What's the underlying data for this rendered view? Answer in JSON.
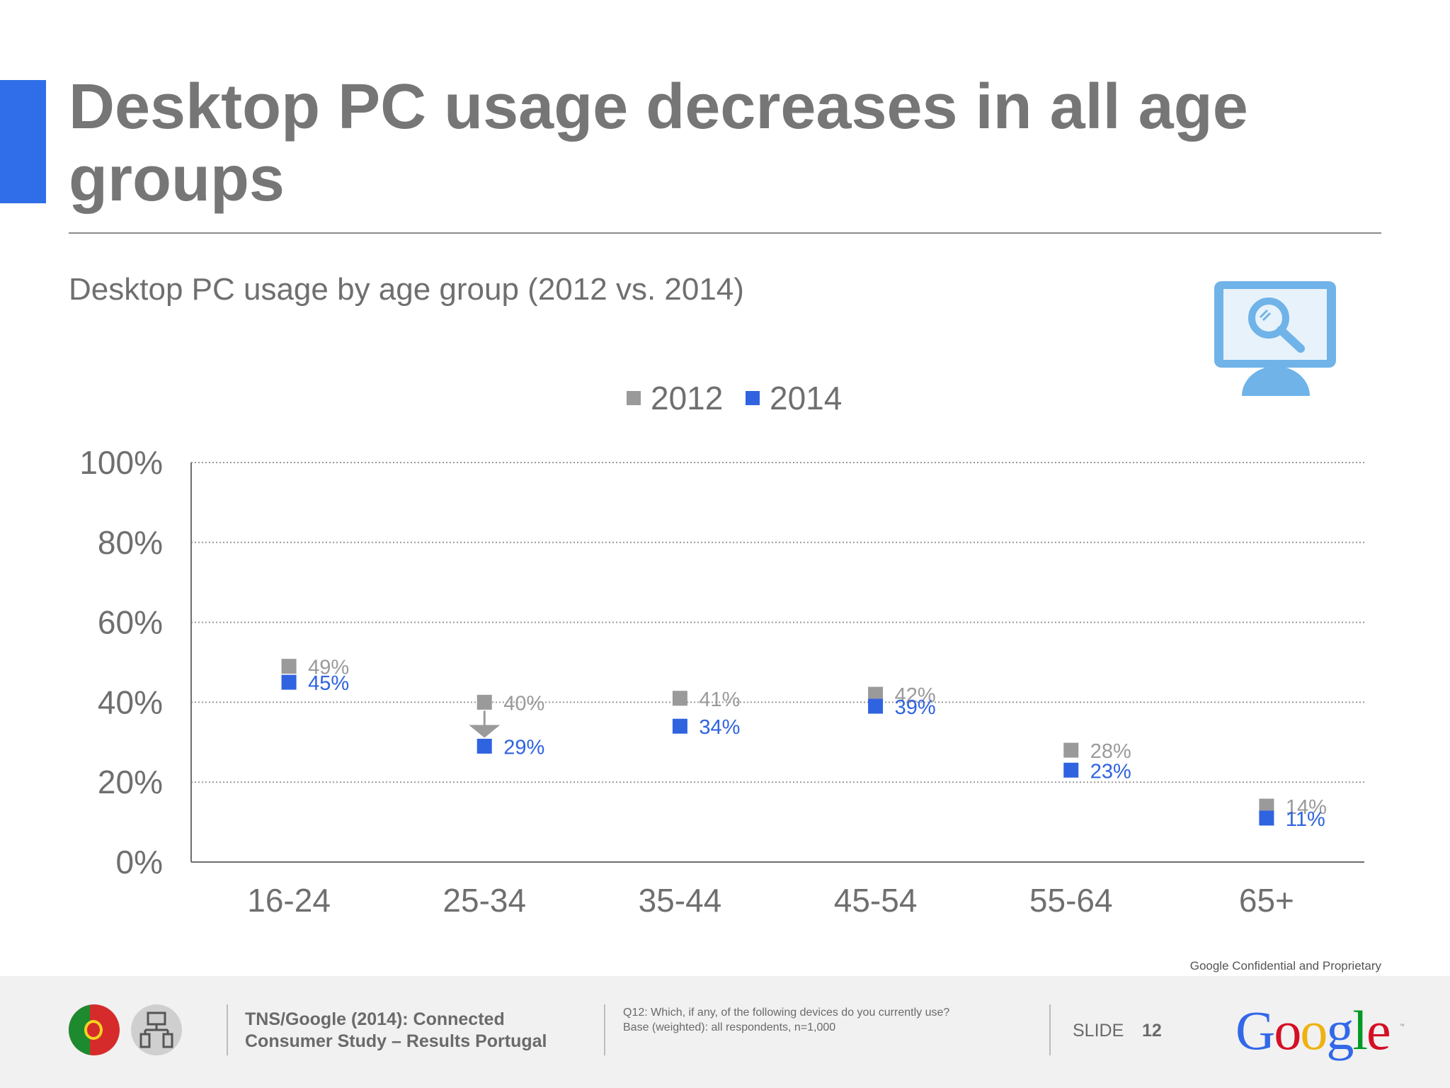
{
  "slide": {
    "title": "Desktop PC usage decreases in all age groups",
    "subtitle": "Desktop PC usage by age group (2012 vs. 2014)",
    "accent_color": "#2f6ee8",
    "icon": "monitor-search-icon"
  },
  "chart_data": {
    "type": "scatter",
    "categories": [
      "16-24",
      "25-34",
      "35-44",
      "45-54",
      "55-64",
      "65+"
    ],
    "series": [
      {
        "name": "2012",
        "color": "#9a9a9a",
        "values": [
          49,
          40,
          41,
          42,
          28,
          14
        ],
        "labels": [
          "49%",
          "40%",
          "41%",
          "42%",
          "28%",
          "14%"
        ]
      },
      {
        "name": "2014",
        "color": "#2f63e0",
        "values": [
          45,
          29,
          34,
          39,
          23,
          11
        ],
        "labels": [
          "45%",
          "29%",
          "34%",
          "39%",
          "23%",
          "11%"
        ]
      }
    ],
    "ylim": [
      0,
      100
    ],
    "yticks": [
      "0%",
      "20%",
      "40%",
      "60%",
      "80%",
      "100%"
    ],
    "ytick_values": [
      0,
      20,
      40,
      60,
      80,
      100
    ],
    "grid": true,
    "legend_position": "top-center",
    "arrow_category": "25-34"
  },
  "footer": {
    "confidential": "Google Confidential and Proprietary",
    "source_line1": "TNS/Google (2014): Connected",
    "source_line2": "Consumer Study – Results Portugal",
    "question_line1": "Q12: Which, if any, of the following devices do you currently use?",
    "question_line2": "Base (weighted): all respondents, n=1,000",
    "slide_label": "SLIDE",
    "slide_number": "12",
    "logo_text": "Google",
    "logo_tm": "™",
    "logo_colors": [
      "#3369e8",
      "#d50f25",
      "#eeb211",
      "#3369e8",
      "#009925",
      "#d50f25"
    ],
    "badges": [
      "portugal-flag-icon",
      "devices-icon"
    ]
  }
}
